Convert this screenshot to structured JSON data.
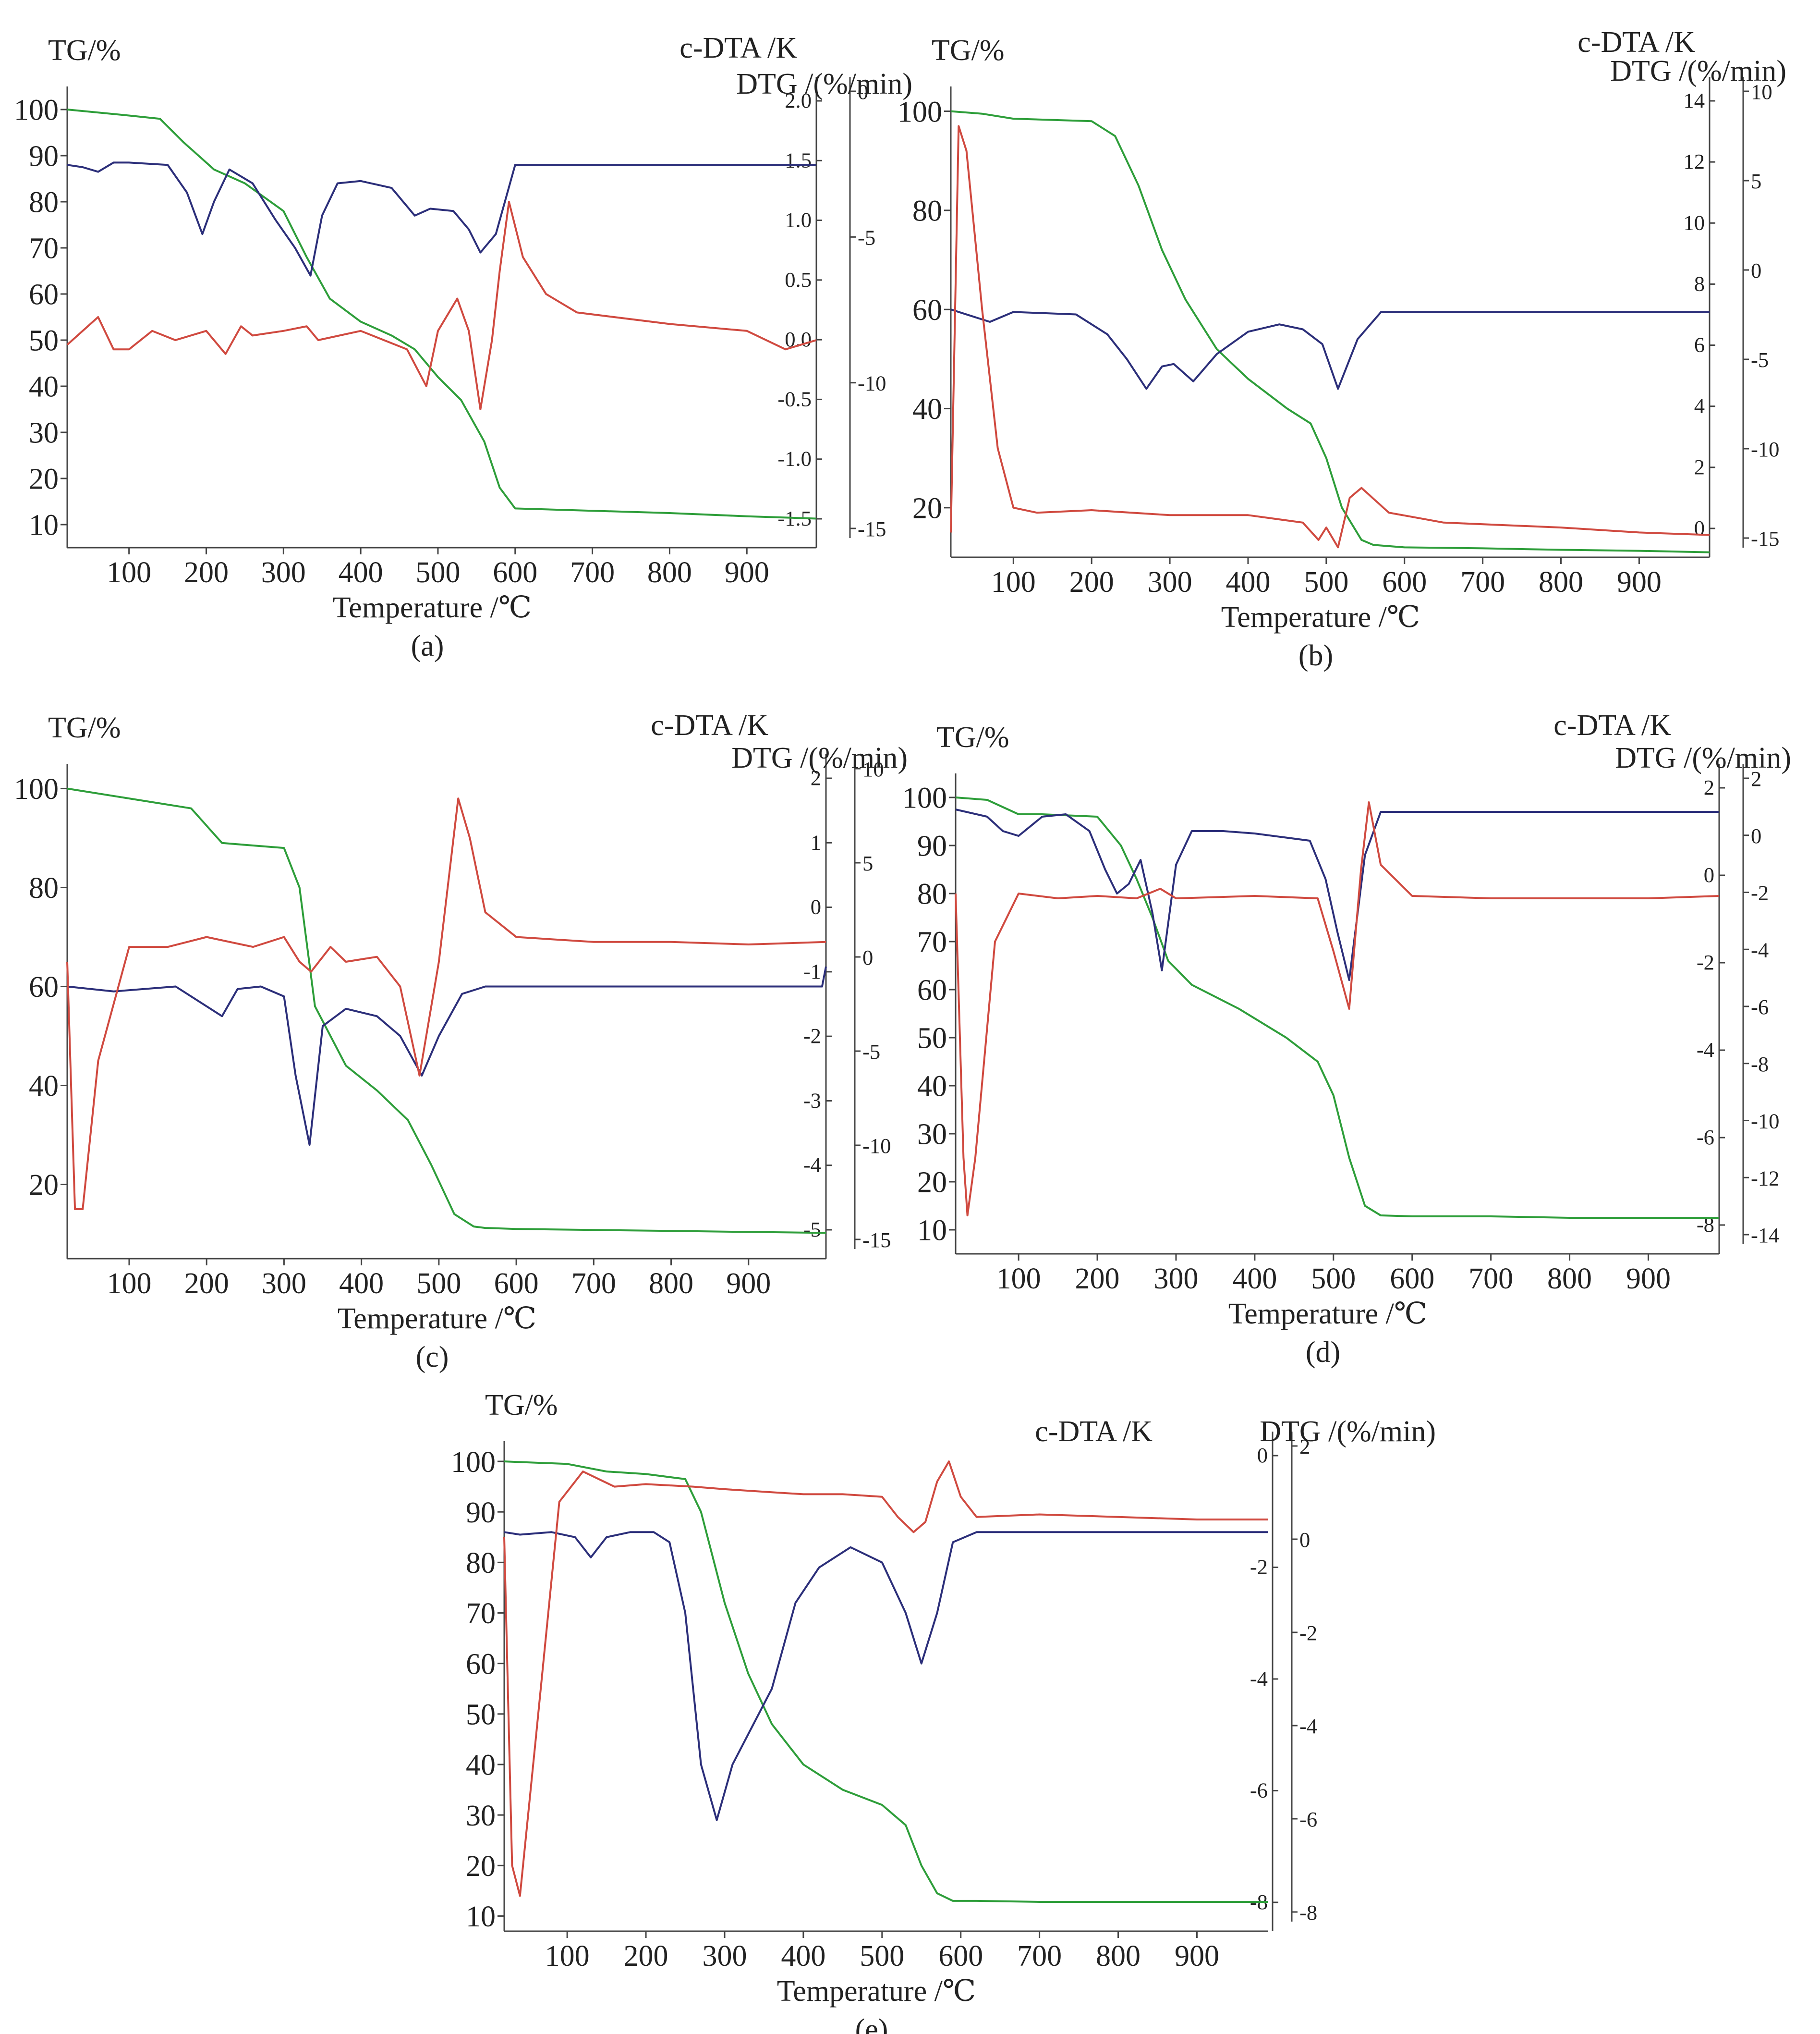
{
  "chart_data": [
    {
      "type": "line",
      "panel_label": "(a)",
      "xlabel": "Temperature /℃",
      "ylabel_left": "TG/%",
      "ylabel_right_a": "c-DTA /K",
      "ylabel_right_b": "DTG /(%/min)",
      "xlim": [
        20,
        990
      ],
      "ylim": [
        5,
        105
      ],
      "x_ticks": [
        100,
        200,
        300,
        400,
        500,
        600,
        700,
        800,
        900
      ],
      "y_ticks": [
        10,
        20,
        30,
        40,
        50,
        60,
        70,
        80,
        90,
        100
      ],
      "right_a_ticks": [
        "2.0",
        "1.5",
        "1.0",
        "0.5",
        "0.0",
        "-0.5",
        "-1.0",
        "-1.5"
      ],
      "right_b_ticks": [
        "0",
        "-5",
        "-10",
        "-15"
      ],
      "series": [
        {
          "name": "TG",
          "color": "#2e9e3a",
          "x": [
            20,
            100,
            140,
            170,
            210,
            250,
            300,
            330,
            360,
            400,
            440,
            470,
            500,
            530,
            560,
            580,
            600,
            700,
            800,
            900,
            990
          ],
          "y": [
            100,
            98.7,
            98,
            93,
            87,
            84,
            78,
            68,
            59,
            54,
            51,
            48,
            42,
            37,
            28,
            18,
            13.5,
            13,
            12.5,
            11.8,
            11.3
          ]
        },
        {
          "name": "DTG",
          "color": "#2c2f7a",
          "x": [
            20,
            40,
            60,
            80,
            100,
            150,
            175,
            195,
            210,
            230,
            260,
            290,
            315,
            335,
            350,
            370,
            400,
            440,
            470,
            490,
            520,
            540,
            555,
            575,
            600,
            700,
            800,
            900,
            990
          ],
          "y": [
            88,
            87.5,
            86.5,
            88.5,
            88.5,
            88,
            82,
            73,
            80,
            87,
            84,
            76,
            70,
            64,
            77,
            84,
            84.5,
            83,
            77,
            78.5,
            78,
            74,
            69,
            73,
            88,
            88,
            88,
            88,
            88
          ]
        },
        {
          "name": "c-DTA",
          "color": "#d04a40",
          "x": [
            20,
            60,
            80,
            100,
            130,
            160,
            200,
            225,
            245,
            260,
            300,
            330,
            345,
            400,
            430,
            460,
            485,
            500,
            525,
            540,
            555,
            570,
            580,
            592,
            610,
            640,
            680,
            800,
            900,
            950,
            990
          ],
          "y": [
            49,
            55,
            48,
            48,
            52,
            50,
            52,
            47,
            53,
            51,
            52,
            53,
            50,
            52,
            50,
            48,
            40,
            52,
            59,
            52,
            35,
            50,
            65,
            80,
            68,
            60,
            56,
            53.5,
            52,
            48,
            50
          ]
        }
      ]
    },
    {
      "type": "line",
      "panel_label": "(b)",
      "xlabel": "Temperature /℃",
      "ylabel_left": "TG/%",
      "ylabel_right_a": "c-DTA /K",
      "ylabel_right_b": "DTG /(%/min)",
      "xlim": [
        20,
        990
      ],
      "ylim": [
        10,
        105
      ],
      "x_ticks": [
        100,
        200,
        300,
        400,
        500,
        600,
        700,
        800,
        900
      ],
      "y_ticks": [
        20,
        40,
        60,
        80,
        100
      ],
      "right_a_ticks": [
        "14",
        "12",
        "10",
        "8",
        "6",
        "4",
        "2",
        "0"
      ],
      "right_b_ticks": [
        "10",
        "5",
        "0",
        "-5",
        "-10",
        "-15"
      ],
      "series": [
        {
          "name": "TG",
          "color": "#2e9e3a",
          "x": [
            20,
            60,
            100,
            200,
            230,
            260,
            290,
            320,
            360,
            400,
            450,
            480,
            500,
            520,
            545,
            560,
            600,
            700,
            800,
            900,
            990
          ],
          "y": [
            100,
            99.5,
            98.5,
            98,
            95,
            85,
            72,
            62,
            52,
            46,
            40,
            37,
            30,
            20,
            13.5,
            12.5,
            12,
            11.8,
            11.5,
            11.3,
            11
          ]
        },
        {
          "name": "DTG",
          "color": "#2c2f7a",
          "x": [
            20,
            50,
            70,
            100,
            180,
            220,
            245,
            270,
            290,
            305,
            330,
            360,
            400,
            440,
            470,
            495,
            515,
            540,
            570,
            600,
            700,
            800,
            900,
            990
          ],
          "y": [
            60,
            58.5,
            57.5,
            59.5,
            59,
            55,
            50,
            44,
            48.5,
            49,
            45.5,
            51,
            55.5,
            57,
            56,
            53,
            44,
            54,
            59.5,
            59.5,
            59.5,
            59.5,
            59.5,
            59.5
          ]
        },
        {
          "name": "c-DTA",
          "color": "#d04a40",
          "x": [
            20,
            30,
            40,
            60,
            80,
            100,
            130,
            200,
            300,
            400,
            470,
            490,
            500,
            515,
            530,
            545,
            580,
            650,
            800,
            900,
            990
          ],
          "y": [
            15,
            97,
            92,
            60,
            32,
            20,
            19,
            19.5,
            18.5,
            18.5,
            17,
            13.5,
            16,
            12,
            22,
            24,
            19,
            17,
            16,
            15,
            14.5
          ]
        }
      ]
    },
    {
      "type": "line",
      "panel_label": "(c)",
      "xlabel": "Temperature /℃",
      "ylabel_left": "TG/%",
      "ylabel_right_a": "c-DTA /K",
      "ylabel_right_b": "DTG /(%/min)",
      "xlim": [
        20,
        1000
      ],
      "ylim": [
        5,
        105
      ],
      "x_ticks": [
        100,
        200,
        300,
        400,
        500,
        600,
        700,
        800,
        900
      ],
      "y_ticks": [
        20,
        40,
        60,
        80,
        100
      ],
      "right_a_ticks": [
        "2",
        "1",
        "0",
        "-1",
        "-2",
        "-3",
        "-4",
        "-5"
      ],
      "right_b_ticks": [
        "10",
        "5",
        "0",
        "-5",
        "-10",
        "-15"
      ],
      "series": [
        {
          "name": "TG",
          "color": "#2e9e3a",
          "x": [
            20,
            100,
            180,
            220,
            260,
            300,
            320,
            340,
            380,
            420,
            460,
            490,
            520,
            545,
            560,
            600,
            700,
            800,
            900,
            1000
          ],
          "y": [
            100,
            98,
            96,
            89,
            88.5,
            88,
            80,
            56,
            44,
            39,
            33,
            24,
            14,
            11.5,
            11.2,
            11,
            10.8,
            10.6,
            10.4,
            10.2
          ]
        },
        {
          "name": "DTG",
          "color": "#2c2f7a",
          "x": [
            20,
            80,
            160,
            190,
            220,
            240,
            270,
            300,
            315,
            333,
            350,
            380,
            420,
            450,
            478,
            500,
            530,
            560,
            600,
            700,
            800,
            900,
            995,
            1000
          ],
          "y": [
            60,
            59,
            60,
            57,
            54,
            59.5,
            60,
            58,
            42,
            28,
            52,
            55.5,
            54,
            50,
            42,
            50,
            58.5,
            60,
            60,
            60,
            60,
            60,
            60,
            64
          ]
        },
        {
          "name": "c-DTA",
          "color": "#d04a40",
          "x": [
            20,
            30,
            40,
            60,
            100,
            150,
            200,
            260,
            300,
            320,
            335,
            360,
            380,
            420,
            450,
            475,
            500,
            525,
            540,
            560,
            600,
            700,
            800,
            900,
            1000
          ],
          "y": [
            65,
            15,
            15,
            45,
            68,
            68,
            70,
            68,
            70,
            65,
            63,
            68,
            65,
            66,
            60,
            42,
            65,
            98,
            90,
            75,
            70,
            69,
            69,
            68.5,
            69
          ]
        }
      ]
    },
    {
      "type": "line",
      "panel_label": "(d)",
      "xlabel": "Temperature /℃",
      "ylabel_left": "TG/%",
      "ylabel_right_a": "c-DTA /K",
      "ylabel_right_b": "DTG /(%/min)",
      "xlim": [
        20,
        990
      ],
      "ylim": [
        5,
        105
      ],
      "x_ticks": [
        100,
        200,
        300,
        400,
        500,
        600,
        700,
        800,
        900
      ],
      "y_ticks": [
        10,
        20,
        30,
        40,
        50,
        60,
        70,
        80,
        90,
        100
      ],
      "right_a_ticks": [
        "2",
        "0",
        "-2",
        "-4",
        "-6",
        "-8"
      ],
      "right_b_ticks": [
        "2",
        "0",
        "-2",
        "-4",
        "-6",
        "-8",
        "-10",
        "-12",
        "-14"
      ],
      "series": [
        {
          "name": "TG",
          "color": "#2e9e3a",
          "x": [
            20,
            60,
            100,
            130,
            200,
            230,
            250,
            270,
            290,
            320,
            380,
            440,
            480,
            500,
            520,
            540,
            560,
            600,
            700,
            800,
            900,
            990
          ],
          "y": [
            100,
            99.5,
            96.5,
            96.5,
            96,
            90,
            83,
            75,
            66,
            61,
            56,
            50,
            45,
            38,
            25,
            15,
            13,
            12.8,
            12.8,
            12.5,
            12.5,
            12.5
          ]
        },
        {
          "name": "DTG",
          "color": "#2c2f7a",
          "x": [
            20,
            60,
            80,
            100,
            130,
            160,
            190,
            210,
            225,
            240,
            255,
            270,
            282,
            300,
            320,
            360,
            400,
            470,
            490,
            505,
            520,
            540,
            560,
            600,
            700,
            800,
            900,
            990
          ],
          "y": [
            97.5,
            96,
            93,
            92,
            96,
            96.5,
            93,
            85,
            80,
            82,
            87,
            76,
            64,
            86,
            93,
            93,
            92.5,
            91,
            83,
            72,
            62,
            88,
            97,
            97,
            97,
            97,
            97,
            97
          ]
        },
        {
          "name": "c-DTA",
          "color": "#d04a40",
          "x": [
            20,
            30,
            35,
            45,
            70,
            100,
            150,
            200,
            250,
            280,
            300,
            400,
            480,
            500,
            520,
            535,
            545,
            560,
            600,
            700,
            800,
            900,
            990
          ],
          "y": [
            80,
            25,
            13,
            25,
            70,
            80,
            79,
            79.5,
            79,
            81,
            79,
            79.5,
            79,
            68,
            56,
            85,
            99,
            86,
            79.5,
            79,
            79,
            79,
            79.5
          ]
        }
      ]
    },
    {
      "type": "line",
      "panel_label": "(e)",
      "xlabel": "Temperature /℃",
      "ylabel_left": "TG/%",
      "ylabel_right_a": "c-DTA /K",
      "ylabel_right_b": "DTG /(%/min)",
      "xlim": [
        20,
        990
      ],
      "ylim": [
        7,
        104
      ],
      "x_ticks": [
        100,
        200,
        300,
        400,
        500,
        600,
        700,
        800,
        900
      ],
      "y_ticks": [
        10,
        20,
        30,
        40,
        50,
        60,
        70,
        80,
        90,
        100
      ],
      "right_a_ticks": [
        "0",
        "-2",
        "-4",
        "-6",
        "-8"
      ],
      "right_b_ticks": [
        "2",
        "0",
        "-2",
        "-4",
        "-6",
        "-8"
      ],
      "series": [
        {
          "name": "TG",
          "color": "#2e9e3a",
          "x": [
            20,
            100,
            150,
            200,
            250,
            270,
            300,
            330,
            360,
            400,
            450,
            500,
            530,
            550,
            570,
            590,
            620,
            700,
            800,
            900,
            990
          ],
          "y": [
            100,
            99.5,
            98,
            97.5,
            96.5,
            90,
            72,
            58,
            48,
            40,
            35,
            32,
            28,
            20,
            14.5,
            13,
            13,
            12.8,
            12.8,
            12.8,
            12.8
          ]
        },
        {
          "name": "DTG",
          "color": "#2c2f7a",
          "x": [
            20,
            40,
            80,
            110,
            130,
            150,
            180,
            210,
            230,
            250,
            270,
            290,
            310,
            330,
            360,
            390,
            420,
            460,
            500,
            530,
            550,
            570,
            590,
            620,
            700,
            800,
            900,
            990
          ],
          "y": [
            86,
            85.5,
            86,
            85,
            81,
            85,
            86,
            86,
            84,
            70,
            40,
            29,
            40,
            46,
            55,
            72,
            79,
            83,
            80,
            70,
            60,
            70,
            84,
            86,
            86,
            86,
            86,
            86
          ]
        },
        {
          "name": "c-DTA",
          "color": "#d04a40",
          "x": [
            20,
            30,
            40,
            60,
            90,
            120,
            160,
            200,
            260,
            300,
            350,
            400,
            450,
            500,
            520,
            540,
            555,
            570,
            585,
            600,
            620,
            700,
            800,
            900,
            990
          ],
          "y": [
            85,
            20,
            14,
            45,
            92,
            98,
            95,
            95.5,
            95,
            94.5,
            94,
            93.5,
            93.5,
            93,
            89,
            86,
            88,
            96,
            100,
            93,
            89,
            89.5,
            89,
            88.5,
            88.5
          ]
        }
      ]
    }
  ]
}
